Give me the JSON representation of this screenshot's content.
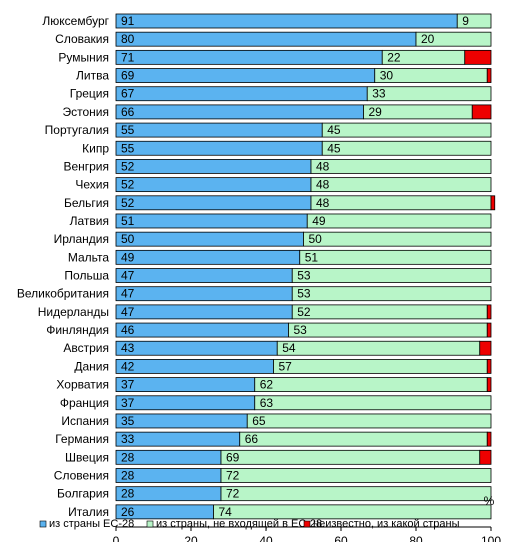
{
  "chart_data": {
    "type": "bar",
    "orientation": "horizontal",
    "stacked": true,
    "xlabel": "%",
    "xlim": [
      0,
      100
    ],
    "xticks": [
      0,
      20,
      40,
      60,
      80,
      100
    ],
    "grid": false,
    "legend_position": "bottom",
    "categories": [
      "Люксембург",
      "Словакия",
      "Румыния",
      "Литва",
      "Греция",
      "Эстония",
      "Португалия",
      "Кипр",
      "Венгрия",
      "Чехия",
      "Бельгия",
      "Латвия",
      "Ирландия",
      "Мальта",
      "Польша",
      "Великобритания",
      "Нидерланды",
      "Финляндия",
      "Австрия",
      "Дания",
      "Хорватия",
      "Франция",
      "Испания",
      "Германия",
      "Швеция",
      "Словения",
      "Болгария",
      "Италия"
    ],
    "series": [
      {
        "name": "из страны ЕС-28",
        "color": "#5bb3f0",
        "values": [
          91,
          80,
          71,
          69,
          67,
          66,
          55,
          55,
          52,
          52,
          52,
          51,
          50,
          49,
          47,
          47,
          47,
          46,
          43,
          42,
          37,
          37,
          35,
          33,
          28,
          28,
          28,
          26
        ],
        "labels": [
          "91",
          "80",
          "71",
          "69",
          "67",
          "66",
          "55",
          "55",
          "52",
          "52",
          "52",
          "51",
          "50",
          "49",
          "47",
          "47",
          "47",
          "46",
          "43",
          "42",
          "37",
          "37",
          "35",
          "33",
          "28",
          "28",
          "28",
          "26"
        ]
      },
      {
        "name": "из страны, не входящей в ЕС-28",
        "color": "#b8f5c8",
        "values": [
          9,
          20,
          22,
          30,
          33,
          29,
          45,
          45,
          48,
          48,
          48,
          49,
          50,
          51,
          53,
          53,
          52,
          53,
          54,
          57,
          62,
          63,
          65,
          66,
          69,
          72,
          72,
          74
        ],
        "labels": [
          "9",
          "20",
          "22",
          "30",
          "33",
          "29",
          "45",
          "45",
          "48",
          "48",
          "48",
          "49",
          "50",
          "51",
          "53",
          "53",
          "52",
          "53",
          "54",
          "57",
          "62",
          "63",
          "65",
          "66",
          "69",
          "72",
          "72",
          "74"
        ]
      },
      {
        "name": "неизвестно, из какой страны",
        "color": "#ee0000",
        "values": [
          0,
          0,
          7,
          1,
          0,
          5,
          0,
          0,
          0,
          0,
          1,
          0,
          0,
          0,
          0,
          0,
          1,
          1,
          3,
          1,
          1,
          0,
          0,
          1,
          3,
          0,
          0,
          0
        ]
      }
    ]
  }
}
